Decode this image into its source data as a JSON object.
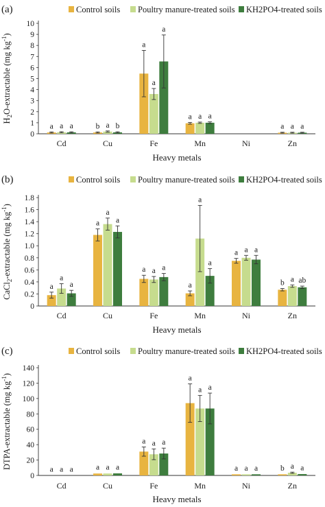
{
  "colors": {
    "control": "#E8B440",
    "poultry": "#C6DC8E",
    "kh2po4": "#3E7D3E",
    "axis": "#333333",
    "errorbar": "#333333"
  },
  "chart_data": [
    {
      "type": "bar",
      "panel_label": "(a)",
      "ylabel_main": "H",
      "ylabel_sub": "2",
      "ylabel_rest": "O-extractable (mg kg",
      "ylabel_sup": "-1",
      "ylabel_end": ")",
      "xlabel": "Heavy metals",
      "categories": [
        "Cd",
        "Cu",
        "Fe",
        "Mn",
        "Ni",
        "Zn"
      ],
      "ylim": [
        0,
        10
      ],
      "yticks": [
        0,
        1,
        2,
        3,
        4,
        5,
        6,
        7,
        8,
        9,
        10
      ],
      "legend_position": "top",
      "series": [
        {
          "name": "Control soils",
          "values": [
            0.12,
            0.12,
            5.45,
            0.95,
            0.02,
            0.1
          ],
          "errors": [
            0.05,
            0.05,
            2.1,
            0.08,
            0.01,
            0.04
          ],
          "letters": [
            "a",
            "b",
            "a",
            "a",
            "",
            "a"
          ]
        },
        {
          "name": "Poultry manure-treated soils",
          "values": [
            0.14,
            0.2,
            3.6,
            1.0,
            0.02,
            0.1
          ],
          "errors": [
            0.05,
            0.06,
            0.5,
            0.06,
            0.01,
            0.04
          ],
          "letters": [
            "a",
            "a",
            "a",
            "a",
            "",
            "a"
          ]
        },
        {
          "name": "KH2PO4-treated soils",
          "values": [
            0.13,
            0.13,
            6.55,
            1.0,
            0.02,
            0.1
          ],
          "errors": [
            0.05,
            0.05,
            2.4,
            0.08,
            0.01,
            0.04
          ],
          "letters": [
            "a",
            "b",
            "a",
            "a",
            "",
            "a"
          ]
        }
      ]
    },
    {
      "type": "bar",
      "panel_label": "(b)",
      "ylabel_main": "CaCl",
      "ylabel_sub": "2",
      "ylabel_rest": "-extractable (mg kg",
      "ylabel_sup": "-1",
      "ylabel_end": ")",
      "xlabel": "Heavy metals",
      "categories": [
        "Cd",
        "Cu",
        "Fe",
        "Mn",
        "Ni",
        "Zn"
      ],
      "ylim": [
        0,
        1.8
      ],
      "yticks": [
        "0",
        "0.2",
        "0.4",
        "0.6",
        "0.8",
        "1.0",
        "1.2",
        "1.4",
        "1.6",
        "1.8"
      ],
      "legend_position": "top",
      "series": [
        {
          "name": "Control soils",
          "values": [
            0.18,
            1.18,
            0.45,
            0.21,
            0.75,
            0.27
          ],
          "errors": [
            0.05,
            0.1,
            0.06,
            0.04,
            0.04,
            0.02
          ],
          "letters": [
            "a",
            "a",
            "a",
            "a",
            "a",
            "b"
          ]
        },
        {
          "name": "Poultry manure-treated soils",
          "values": [
            0.29,
            1.36,
            0.44,
            1.12,
            0.8,
            0.33
          ],
          "errors": [
            0.08,
            0.1,
            0.05,
            0.55,
            0.04,
            0.02
          ],
          "letters": [
            "a",
            "a",
            "a",
            "a",
            "a",
            "a"
          ]
        },
        {
          "name": "KH2PO4-treated soils",
          "values": [
            0.21,
            1.23,
            0.48,
            0.5,
            0.77,
            0.31
          ],
          "errors": [
            0.05,
            0.1,
            0.06,
            0.12,
            0.07,
            0.02
          ],
          "letters": [
            "a",
            "a",
            "a",
            "a",
            "a",
            "ab"
          ]
        }
      ]
    },
    {
      "type": "bar",
      "panel_label": "(c)",
      "ylabel_main": "DTPA-extractable (mg kg",
      "ylabel_sub": "",
      "ylabel_rest": "",
      "ylabel_sup": "-1",
      "ylabel_end": ")",
      "xlabel": "Heavy metals",
      "categories": [
        "Cd",
        "Cu",
        "Fe",
        "Mn",
        "Ni",
        "Zn"
      ],
      "ylim": [
        0,
        140
      ],
      "yticks": [
        0,
        20,
        40,
        60,
        80,
        100,
        120,
        140
      ],
      "legend_position": "top",
      "series": [
        {
          "name": "Control soils",
          "values": [
            0.2,
            2.5,
            31,
            94,
            1.5,
            1.5
          ],
          "errors": [
            0.05,
            0.5,
            6,
            25,
            0.3,
            0.3
          ],
          "letters": [
            "a",
            "a",
            "a",
            "a",
            "a",
            "b"
          ]
        },
        {
          "name": "Poultry manure-treated soils",
          "values": [
            0.2,
            2.5,
            27.5,
            87,
            1.5,
            3.5
          ],
          "errors": [
            0.05,
            0.5,
            7,
            17,
            0.3,
            0.8
          ],
          "letters": [
            "a",
            "a",
            "a",
            "a",
            "a",
            "a"
          ]
        },
        {
          "name": "KH2PO4-treated soils",
          "values": [
            0.2,
            2.7,
            28.5,
            87,
            1.5,
            1.8
          ],
          "errors": [
            0.05,
            0.5,
            7,
            20,
            0.3,
            0.3
          ],
          "letters": [
            "a",
            "a",
            "a",
            "a",
            "a",
            "a"
          ]
        }
      ]
    }
  ]
}
